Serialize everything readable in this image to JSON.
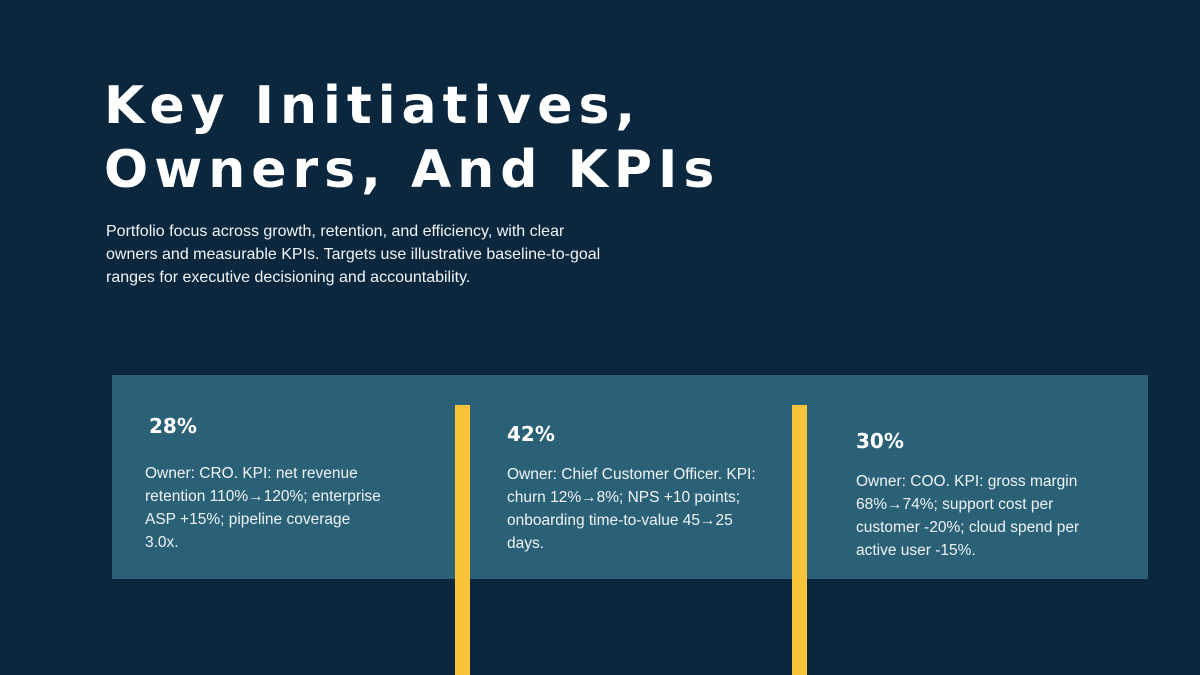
{
  "header": {
    "title_line1": "Key Initiatives,",
    "title_line2": "Owners, And KPIs",
    "subtitle": "Portfolio focus across growth, retention, and efficiency, with clear owners and measurable KPIs. Targets use illustrative baseline-to-goal ranges for executive decisioning and accountability."
  },
  "colors": {
    "background": "#0b273d",
    "panel": "#2b6176",
    "accent": "#fcc43a"
  },
  "initiatives": [
    {
      "percent": "28%",
      "description": "Owner: CRO. KPI: net revenue retention 110%→120%; enterprise ASP +15%; pipeline coverage 3.0x."
    },
    {
      "percent": "42%",
      "description": "Owner: Chief Customer Officer. KPI: churn 12%→8%; NPS +10 points; onboarding time-to-value 45→25 days."
    },
    {
      "percent": "30%",
      "description": "Owner: COO. KPI: gross margin 68%→74%; support cost per customer -20%; cloud spend per active user -15%."
    }
  ]
}
